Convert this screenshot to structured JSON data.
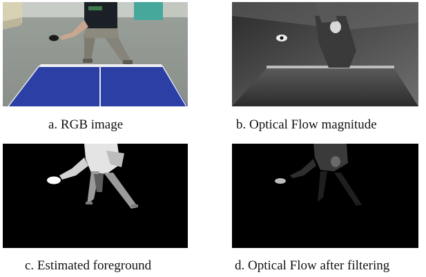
{
  "figure": {
    "panels": [
      {
        "id": "a",
        "caption": "a. RGB image"
      },
      {
        "id": "b",
        "caption": "b. Optical Flow magnitude"
      },
      {
        "id": "c",
        "caption": "c. Estimated foreground"
      },
      {
        "id": "d",
        "caption": "d. Optical Flow after filtering"
      }
    ]
  }
}
